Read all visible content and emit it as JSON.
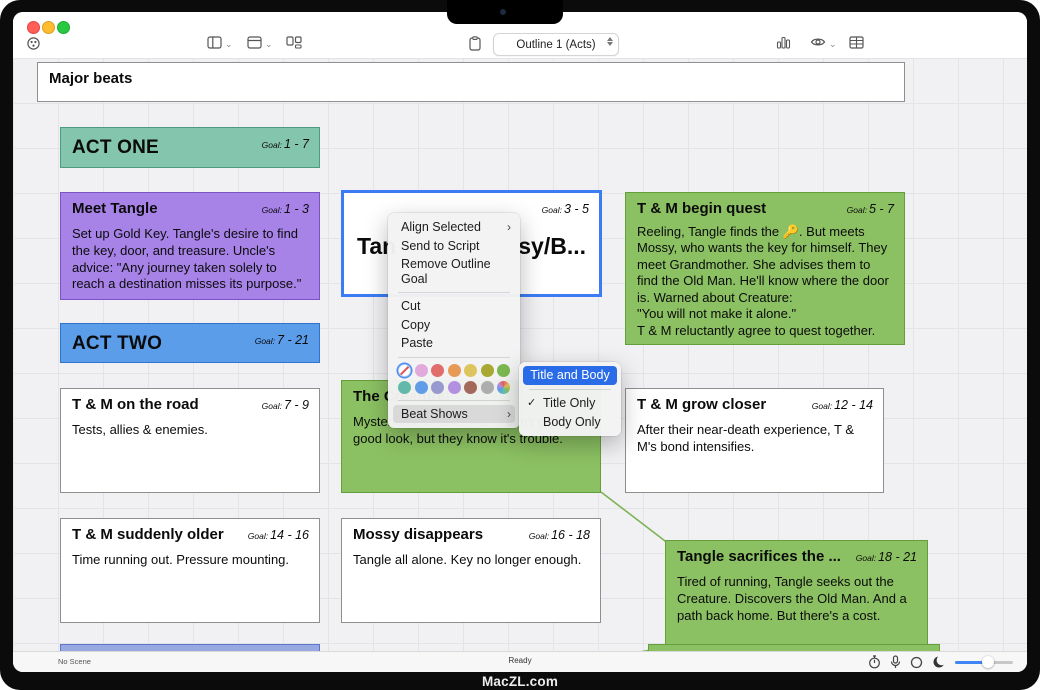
{
  "device": {
    "watermark": "MacZL.com"
  },
  "titlebar": {
    "outline_dropdown": "Outline 1 (Acts)"
  },
  "board": {
    "goal_label": "Goal:",
    "header": {
      "title": "Major beats"
    },
    "cards": {
      "act_one": {
        "title": "ACT ONE",
        "goal": "1 - 7"
      },
      "meet_tangle": {
        "title": "Meet Tangle",
        "goal": "1 - 3",
        "body": "Set up Gold Key. Tangle's desire to find the key, door, and treasure. Uncle's advice: \"Any journey taken solely to reach a destination misses its purpose.\""
      },
      "selected_beat": {
        "title_left": "Tan",
        "title_right": "sy/B...",
        "goal": "3 - 5"
      },
      "begin_quest": {
        "title": "T & M begin quest",
        "goal": "5 - 7",
        "body": "Reeling, Tangle finds the 🔑. But meets Mossy, who wants the key for himself. They meet Grandmother. She advises them to find the Old Man. He'll know where the door is. Warned about Creature:\n\"You will not make it alone.\"\nT & M reluctantly agree to quest together."
      },
      "act_two": {
        "title": "ACT TWO",
        "goal": "7 - 21"
      },
      "on_the_road": {
        "title": "T & M on the road",
        "goal": "7 - 9",
        "body": "Tests, allies & enemies."
      },
      "creature": {
        "title": "The Creature!",
        "body": "Mysterious. Chase. T & M don't get a good look, but they know it's trouble."
      },
      "grow_closer": {
        "title": "T & M grow closer",
        "goal": "12 - 14",
        "body": "After their near-death experience, T & M's bond intensifies."
      },
      "suddenly_older": {
        "title": "T & M suddenly older",
        "goal": "14 - 16",
        "body": "Time running out. Pressure mounting."
      },
      "mossy_disappears": {
        "title": "Mossy disappears",
        "goal": "16 - 18",
        "body": "Tangle all alone. Key no longer enough."
      },
      "sacrifices": {
        "title": "Tangle sacrifices the ...",
        "goal": "18 - 21",
        "body": "Tired of running, Tangle seeks out the Creature. Discovers the Old Man. And a path back home. But there's a cost."
      }
    }
  },
  "context_menu": {
    "items": [
      {
        "label": "Align Selected",
        "submenu": true
      },
      {
        "label": "Send to Script"
      },
      {
        "label": "Remove Outline Goal"
      },
      {
        "label": "Cut"
      },
      {
        "label": "Copy"
      },
      {
        "label": "Paste"
      },
      {
        "label": "Beat Shows",
        "submenu": true,
        "highlighted": true
      }
    ],
    "swatches": [
      {
        "name": "none"
      },
      {
        "name": "pink",
        "hex": "#e2a9dd"
      },
      {
        "name": "red",
        "hex": "#e06c6c"
      },
      {
        "name": "orange",
        "hex": "#e69a56"
      },
      {
        "name": "yellow",
        "hex": "#ddc45e"
      },
      {
        "name": "olive",
        "hex": "#a8a832"
      },
      {
        "name": "green",
        "hex": "#7cb84f"
      },
      {
        "name": "teal",
        "hex": "#62b9a9"
      },
      {
        "name": "blue",
        "hex": "#619ce8"
      },
      {
        "name": "slate",
        "hex": "#9899cf"
      },
      {
        "name": "purple",
        "hex": "#b38fe0"
      },
      {
        "name": "brown",
        "hex": "#a2685a"
      },
      {
        "name": "gray",
        "hex": "#adadad"
      },
      {
        "name": "rainbow"
      }
    ],
    "submenu_arrow": "›"
  },
  "beat_shows_submenu": {
    "items": [
      {
        "label": "Title and Body",
        "selected": true
      },
      {
        "label": "Title Only",
        "checked": true
      },
      {
        "label": "Body Only"
      }
    ],
    "checkmark": "✓"
  },
  "status_bar": {
    "scene": "No Scene",
    "state": "Ready"
  },
  "colors": {
    "accent_blue": "#3b7cf5",
    "selected_menu_blue": "#2a6be8",
    "card_green": "#8cc163",
    "card_purple": "#a783e8",
    "card_teal": "#84c6ad",
    "card_blue": "#5c9dea",
    "partial_card_blue": "#98a9e2"
  }
}
